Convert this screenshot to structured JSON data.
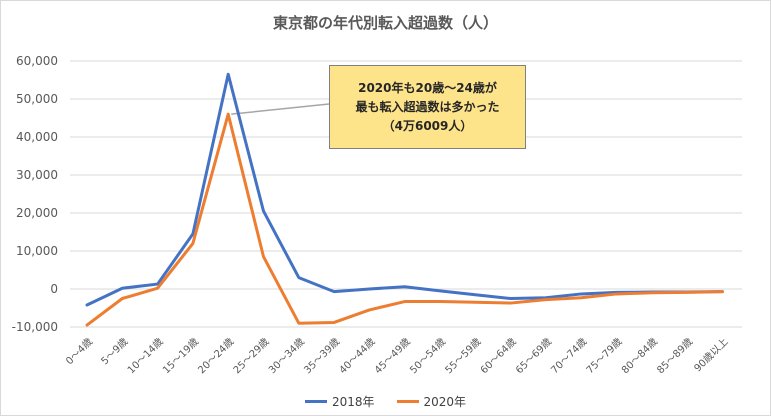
{
  "chart_data": {
    "type": "line",
    "title": "東京都の年代別転入超過数（人）",
    "xlabel": "",
    "ylabel": "",
    "ylim": [
      -10000,
      60000
    ],
    "yticks": [
      -10000,
      0,
      10000,
      20000,
      30000,
      40000,
      50000,
      60000
    ],
    "ytick_labels": [
      "-10,000",
      "0",
      "10,000",
      "20,000",
      "30,000",
      "40,000",
      "50,000",
      "60,000"
    ],
    "grid": true,
    "legend_position": "bottom",
    "categories": [
      "0〜4歳",
      "5〜9歳",
      "10〜14歳",
      "15〜19歳",
      "20〜24歳",
      "25〜29歳",
      "30〜34歳",
      "35〜39歳",
      "40〜44歳",
      "45〜49歳",
      "50〜54歳",
      "55〜59歳",
      "60〜64歳",
      "65〜69歳",
      "70〜74歳",
      "75〜79歳",
      "80〜84歳",
      "85〜89歳",
      "90歳以上"
    ],
    "series": [
      {
        "name": "2018年",
        "color": "#4472c4",
        "values": [
          -4200,
          200,
          1300,
          14500,
          56500,
          20500,
          3000,
          -700,
          0,
          600,
          -500,
          -1500,
          -2500,
          -2300,
          -1300,
          -900,
          -800,
          -800,
          -700
        ]
      },
      {
        "name": "2020年",
        "color": "#ed7d31",
        "values": [
          -9500,
          -2500,
          200,
          12000,
          46009,
          8500,
          -9000,
          -8800,
          -5500,
          -3300,
          -3300,
          -3500,
          -3700,
          -2800,
          -2300,
          -1300,
          -1000,
          -900,
          -700
        ]
      }
    ],
    "annotation": {
      "lines": [
        "2020年も20歳〜24歳が",
        "最も転入超過数は多かった",
        "（4万6009人）"
      ],
      "fill": "#fde38a"
    }
  }
}
